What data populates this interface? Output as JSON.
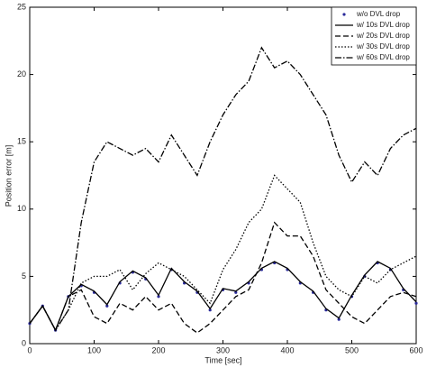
{
  "chart_data": {
    "type": "line",
    "xlabel": "Time [sec]",
    "ylabel": "Position error [m]",
    "x": [
      0,
      20,
      40,
      60,
      80,
      100,
      120,
      140,
      160,
      180,
      200,
      220,
      240,
      260,
      280,
      300,
      320,
      340,
      360,
      380,
      400,
      420,
      440,
      460,
      480,
      500,
      520,
      540,
      560,
      580,
      600
    ],
    "series": [
      {
        "name": "w/o DVL drop",
        "color": "#2a2a9a",
        "style": "dots",
        "values": [
          1.5,
          2.8,
          1.0,
          3.5,
          4.3,
          3.8,
          2.8,
          4.5,
          5.3,
          4.8,
          3.5,
          5.5,
          4.5,
          3.8,
          2.5,
          4.0,
          3.8,
          4.5,
          5.5,
          6.0,
          5.5,
          4.5,
          3.8,
          2.5,
          1.8,
          3.5,
          5.0,
          6.0,
          5.5,
          4.0,
          3.0
        ]
      },
      {
        "name": "w/ 10s DVL drop",
        "color": "#000000",
        "style": "solid",
        "values": [
          1.5,
          2.8,
          1.0,
          3.5,
          4.4,
          3.9,
          2.9,
          4.6,
          5.4,
          4.9,
          3.6,
          5.6,
          4.6,
          3.9,
          2.6,
          4.1,
          3.9,
          4.6,
          5.6,
          6.1,
          5.6,
          4.6,
          3.9,
          2.6,
          1.9,
          3.6,
          5.1,
          6.1,
          5.6,
          4.1,
          3.1
        ]
      },
      {
        "name": "w/ 20s DVL drop",
        "color": "#000000",
        "style": "dashed",
        "values": [
          1.5,
          2.8,
          1.0,
          3.5,
          4.0,
          2.0,
          1.5,
          3.0,
          2.5,
          3.5,
          2.5,
          3.0,
          1.5,
          0.8,
          1.5,
          2.5,
          3.5,
          4.0,
          6.0,
          9.0,
          8.0,
          8.0,
          6.5,
          4.0,
          3.0,
          2.0,
          1.5,
          2.5,
          3.5,
          3.8,
          3.5
        ]
      },
      {
        "name": "w/ 30s DVL drop",
        "color": "#000000",
        "style": "dotted",
        "values": [
          1.5,
          2.8,
          1.0,
          2.5,
          4.5,
          5.0,
          5.0,
          5.5,
          4.0,
          5.2,
          6.0,
          5.5,
          5.0,
          4.0,
          3.0,
          5.5,
          7.0,
          9.0,
          10.0,
          12.5,
          11.5,
          10.5,
          7.5,
          5.0,
          4.0,
          3.5,
          5.0,
          4.5,
          5.5,
          6.0,
          6.5
        ]
      },
      {
        "name": "w/ 60s DVL drop",
        "color": "#000000",
        "style": "dashdot",
        "values": [
          1.5,
          2.8,
          1.0,
          2.5,
          9.0,
          13.5,
          15.0,
          14.5,
          14.0,
          14.5,
          13.5,
          15.5,
          14.0,
          12.5,
          15.0,
          17.0,
          18.5,
          19.5,
          22.0,
          20.5,
          21.0,
          20.0,
          18.5,
          17.0,
          14.0,
          12.0,
          13.5,
          12.5,
          14.5,
          15.5,
          16.0
        ]
      }
    ],
    "xlim": [
      0,
      600
    ],
    "xticks": [
      0,
      100,
      200,
      300,
      400,
      500,
      600
    ],
    "ylim": [
      0,
      25
    ],
    "yticks": [
      0,
      5,
      10,
      15,
      20,
      25
    ],
    "legend": "northeast",
    "grid": false
  }
}
